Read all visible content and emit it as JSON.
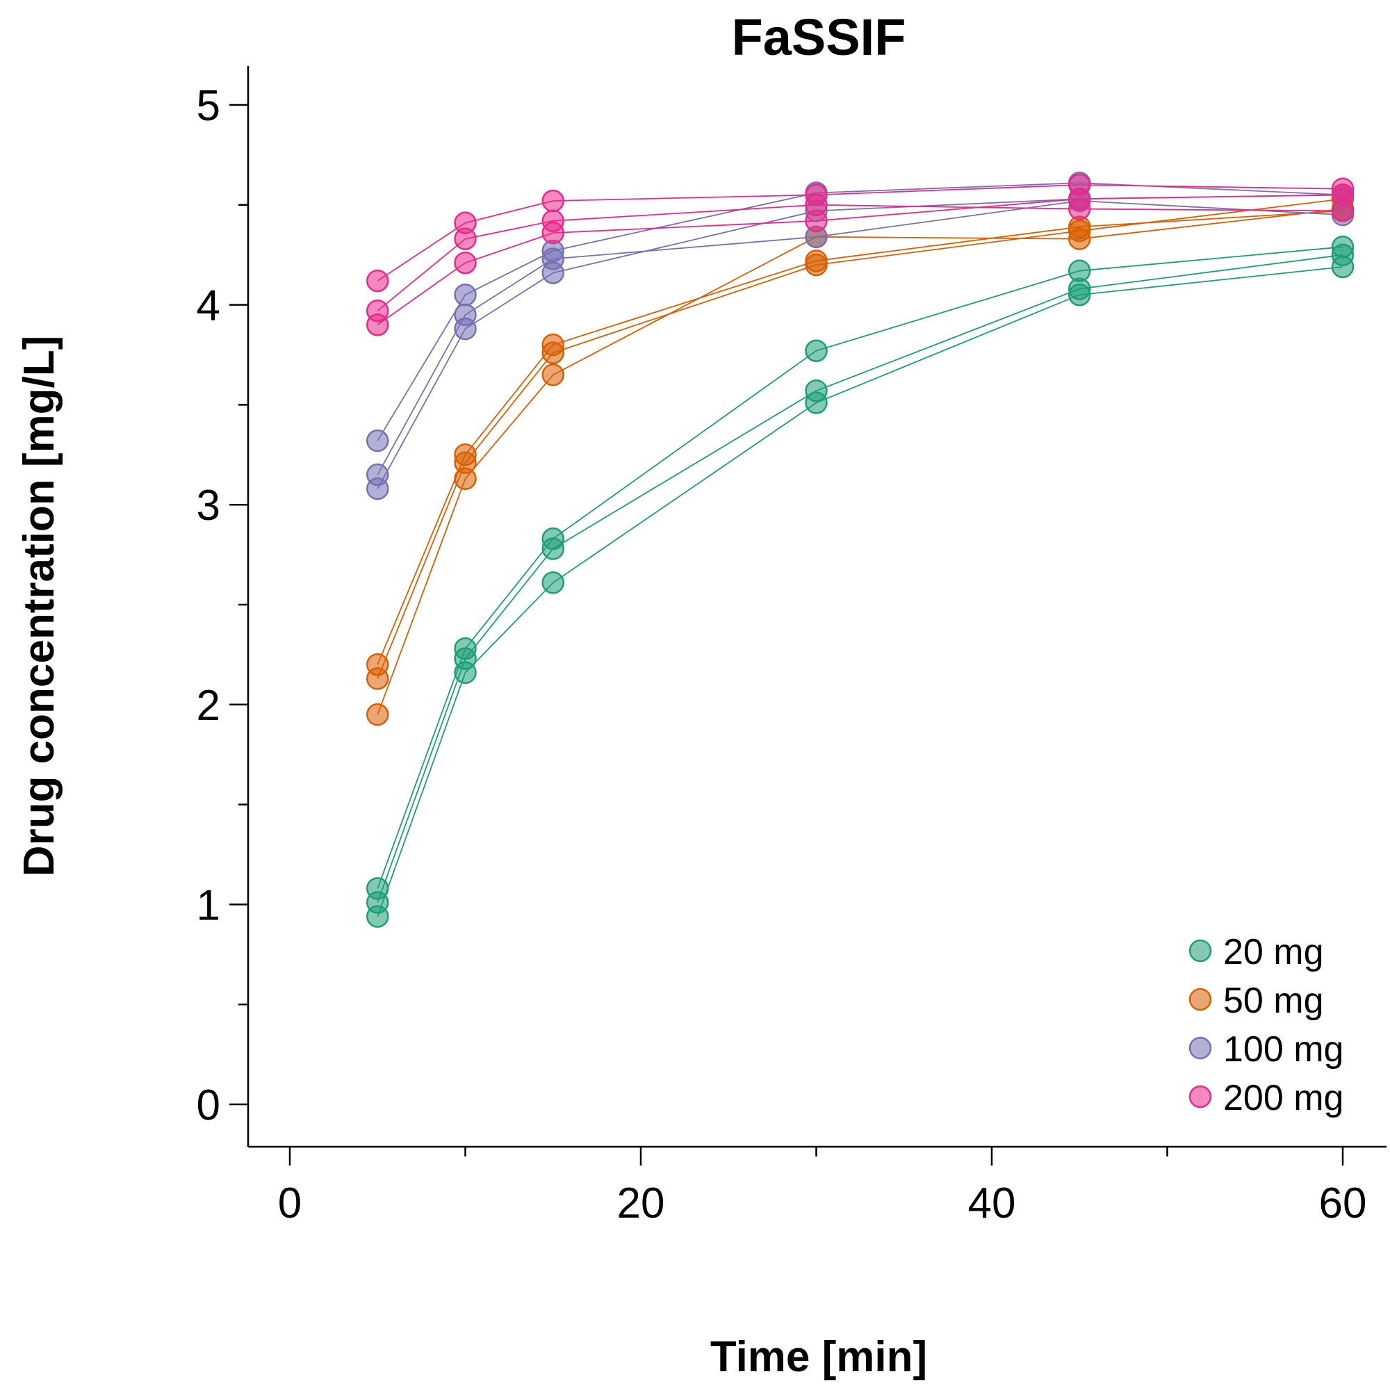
{
  "chart_data": {
    "type": "scatter",
    "title": "FaSSIF",
    "xlabel": "Time [min]",
    "ylabel": "Drug concentration [mg/L]",
    "xlim": [
      -2.5,
      62
    ],
    "ylim": [
      -0.2,
      5.2
    ],
    "x_major_ticks": [
      0,
      20,
      40,
      60
    ],
    "x_minor_ticks": [
      10,
      30,
      50
    ],
    "y_major_ticks": [
      0,
      1,
      2,
      3,
      4,
      5
    ],
    "y_minor_ticks": [
      0.5,
      1.5,
      2.5,
      3.5,
      4.5
    ],
    "x_tick_labels": [
      "0",
      "20",
      "40",
      "60"
    ],
    "y_tick_labels": [
      "0",
      "1",
      "2",
      "3",
      "4",
      "5"
    ],
    "x": [
      5,
      10,
      15,
      30,
      45,
      60
    ],
    "grid": false,
    "legend_position": "bottom-right",
    "markers": "filled circles joined by thin lines",
    "series": [
      {
        "name": "20 mg",
        "color": "#1b9e77",
        "replicates": [
          [
            1.08,
            2.28,
            2.83,
            3.77,
            4.17,
            4.29
          ],
          [
            1.01,
            2.23,
            2.78,
            3.57,
            4.08,
            4.25
          ],
          [
            0.94,
            2.16,
            2.61,
            3.51,
            4.05,
            4.19
          ]
        ]
      },
      {
        "name": "50 mg",
        "color": "#d95f02",
        "replicates": [
          [
            2.2,
            3.25,
            3.8,
            4.22,
            4.39,
            4.47
          ],
          [
            2.13,
            3.21,
            3.76,
            4.2,
            4.37,
            4.53
          ],
          [
            1.95,
            3.13,
            3.65,
            4.34,
            4.33,
            4.48
          ]
        ]
      },
      {
        "name": "100 mg",
        "color": "#7570b3",
        "replicates": [
          [
            3.32,
            4.05,
            4.27,
            4.56,
            4.61,
            4.55
          ],
          [
            3.15,
            3.95,
            4.23,
            4.34,
            4.52,
            4.45
          ],
          [
            3.08,
            3.88,
            4.16,
            4.47,
            4.53,
            4.55
          ]
        ]
      },
      {
        "name": "200 mg",
        "color": "#e7298a",
        "replicates": [
          [
            4.12,
            4.41,
            4.52,
            4.55,
            4.6,
            4.58
          ],
          [
            3.97,
            4.33,
            4.42,
            4.5,
            4.48,
            4.47
          ],
          [
            3.9,
            4.21,
            4.36,
            4.42,
            4.53,
            4.55
          ]
        ]
      }
    ]
  }
}
